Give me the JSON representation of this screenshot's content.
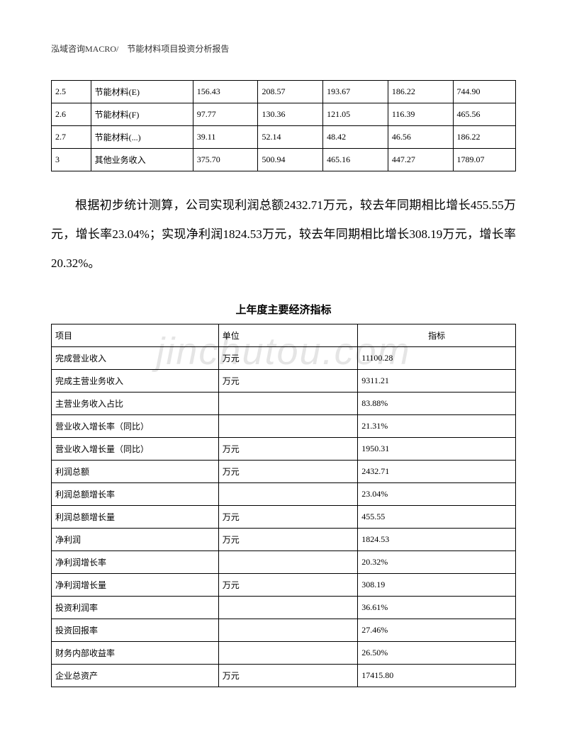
{
  "header": "泓域咨询MACRO/　节能材料项目投资分析报告",
  "watermark": "jinchutou.com",
  "table1": {
    "rows": [
      [
        "2.5",
        "节能材料(E)",
        "156.43",
        "208.57",
        "193.67",
        "186.22",
        "744.90"
      ],
      [
        "2.6",
        "节能材料(F)",
        "97.77",
        "130.36",
        "121.05",
        "116.39",
        "465.56"
      ],
      [
        "2.7",
        "节能材料(...)",
        "39.11",
        "52.14",
        "48.42",
        "46.56",
        "186.22"
      ],
      [
        "3",
        "其他业务收入",
        "375.70",
        "500.94",
        "465.16",
        "447.27",
        "1789.07"
      ]
    ]
  },
  "paragraph": "根据初步统计测算，公司实现利润总额2432.71万元，较去年同期相比增长455.55万元，增长率23.04%；实现净利润1824.53万元，较去年同期相比增长308.19万元，增长率20.32%。",
  "sectionTitle": "上年度主要经济指标",
  "table2": {
    "headers": [
      "项目",
      "单位",
      "指标"
    ],
    "rows": [
      [
        "完成营业收入",
        "万元",
        "11100.28"
      ],
      [
        "完成主营业务收入",
        "万元",
        "9311.21"
      ],
      [
        "主营业务收入占比",
        "",
        "83.88%"
      ],
      [
        "营业收入增长率（同比）",
        "",
        "21.31%"
      ],
      [
        "营业收入增长量（同比）",
        "万元",
        "1950.31"
      ],
      [
        "利润总额",
        "万元",
        "2432.71"
      ],
      [
        "利润总额增长率",
        "",
        "23.04%"
      ],
      [
        "利润总额增长量",
        "万元",
        "455.55"
      ],
      [
        "净利润",
        "万元",
        "1824.53"
      ],
      [
        "净利润增长率",
        "",
        "20.32%"
      ],
      [
        "净利润增长量",
        "万元",
        "308.19"
      ],
      [
        "投资利润率",
        "",
        "36.61%"
      ],
      [
        "投资回报率",
        "",
        "27.46%"
      ],
      [
        "财务内部收益率",
        "",
        "26.50%"
      ],
      [
        "企业总资产",
        "万元",
        "17415.80"
      ]
    ]
  }
}
